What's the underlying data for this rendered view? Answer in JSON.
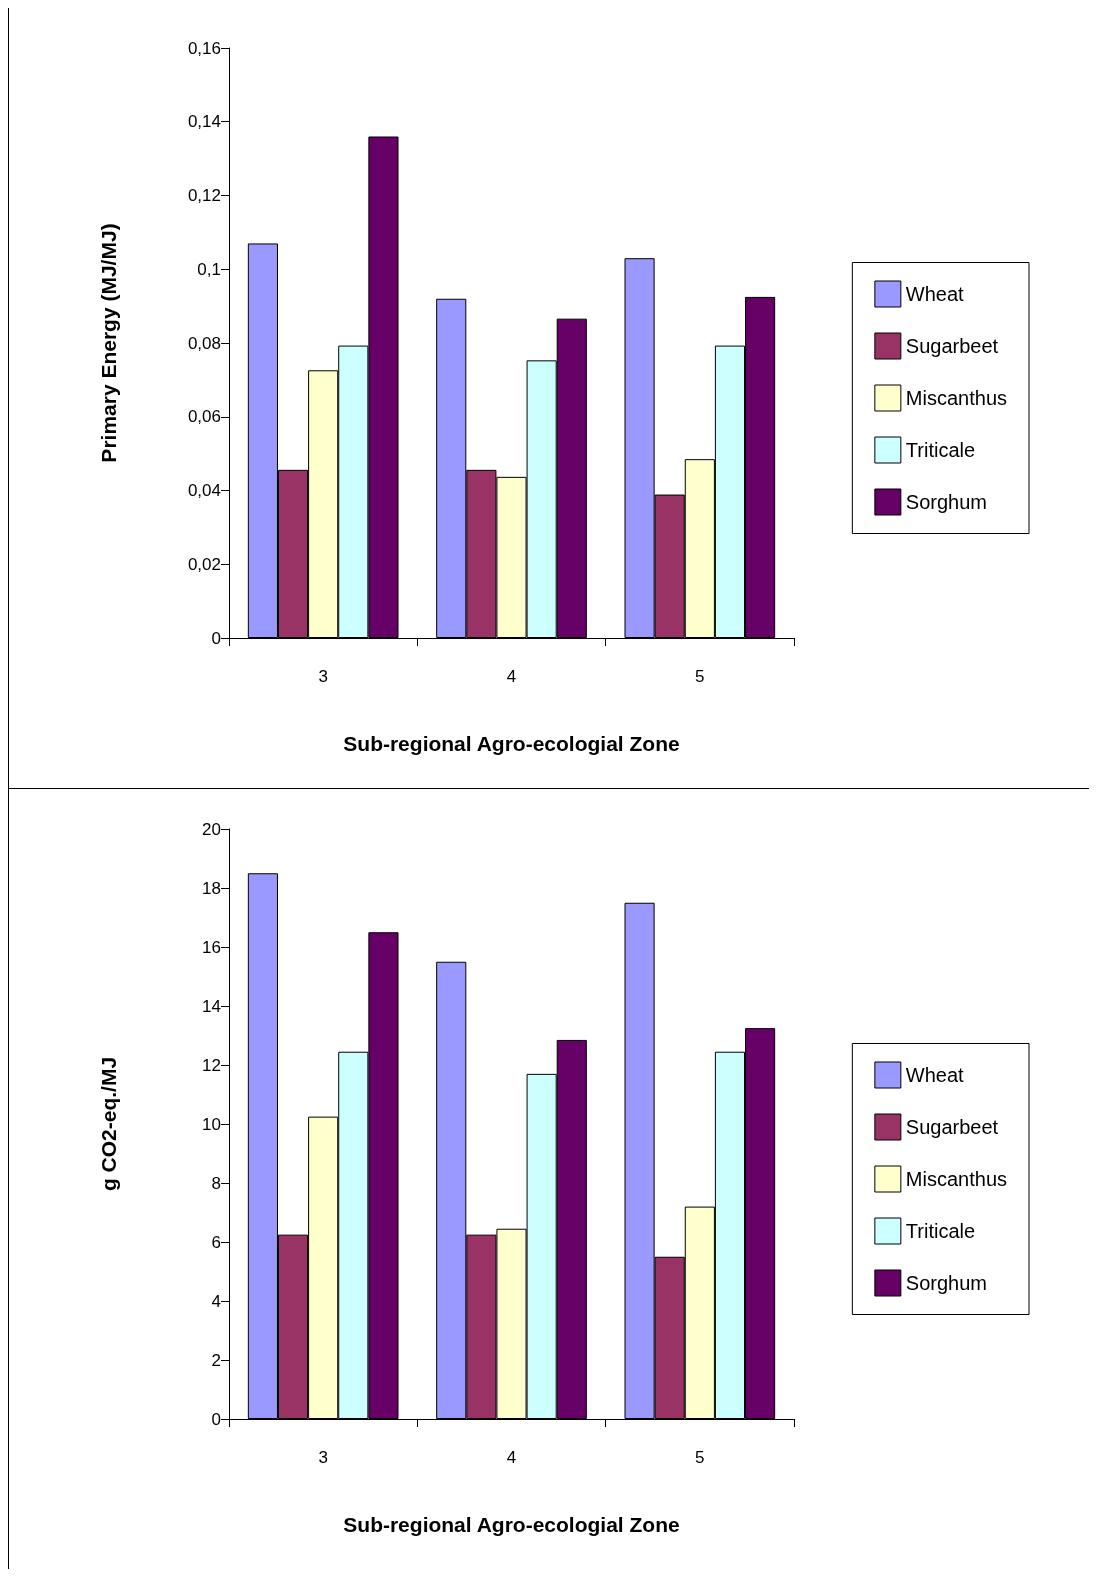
{
  "chart_data": [
    {
      "type": "bar",
      "xlabel": "Sub-regional Agro-ecologial Zone",
      "ylabel": "Primary Energy (MJ/MJ)",
      "categories": [
        "3",
        "4",
        "5"
      ],
      "ylim": [
        0,
        0.16
      ],
      "yticks": [
        0,
        {
          "value": 0.02,
          "label": "0,02"
        },
        {
          "value": 0.04,
          "label": "0,04"
        },
        {
          "value": 0.06,
          "label": "0,06"
        },
        {
          "value": 0.08,
          "label": "0,08"
        },
        {
          "value": 0.1,
          "label": "0,1"
        },
        {
          "value": 0.12,
          "label": "0,12"
        },
        {
          "value": 0.14,
          "label": "0,14"
        },
        {
          "value": 0.16,
          "label": "0,16"
        }
      ],
      "grid": false,
      "legend": "right",
      "series": [
        {
          "name": "Wheat",
          "color": "#9999ff",
          "values": [
            0.107,
            0.092,
            0.103
          ]
        },
        {
          "name": "Sugarbeet",
          "color": "#993366",
          "values": [
            0.0456,
            0.0456,
            0.0389
          ]
        },
        {
          "name": "Miscanthus",
          "color": "#ffffcc",
          "values": [
            0.0726,
            0.0437,
            0.0485
          ]
        },
        {
          "name": "Triticale",
          "color": "#ccffff",
          "values": [
            0.0793,
            0.0753,
            0.0793
          ]
        },
        {
          "name": "Sorghum",
          "color": "#660066",
          "values": [
            0.136,
            0.0866,
            0.0925
          ]
        }
      ]
    },
    {
      "type": "bar",
      "xlabel": "Sub-regional Agro-ecologial Zone",
      "ylabel": "g CO2-eq./MJ",
      "categories": [
        "3",
        "4",
        "5"
      ],
      "ylim": [
        0,
        20
      ],
      "yticks": [
        0,
        2,
        4,
        6,
        8,
        10,
        12,
        14,
        16,
        18,
        20
      ],
      "grid": false,
      "legend": "right",
      "series": [
        {
          "name": "Wheat",
          "color": "#9999ff",
          "values": [
            18.5,
            15.5,
            17.5
          ]
        },
        {
          "name": "Sugarbeet",
          "color": "#993366",
          "values": [
            6.25,
            6.25,
            5.5
          ]
        },
        {
          "name": "Miscanthus",
          "color": "#ffffcc",
          "values": [
            10.25,
            6.45,
            7.2
          ]
        },
        {
          "name": "Triticale",
          "color": "#ccffff",
          "values": [
            12.45,
            11.7,
            12.45
          ]
        },
        {
          "name": "Sorghum",
          "color": "#660066",
          "values": [
            16.5,
            12.85,
            13.25
          ]
        }
      ]
    }
  ]
}
